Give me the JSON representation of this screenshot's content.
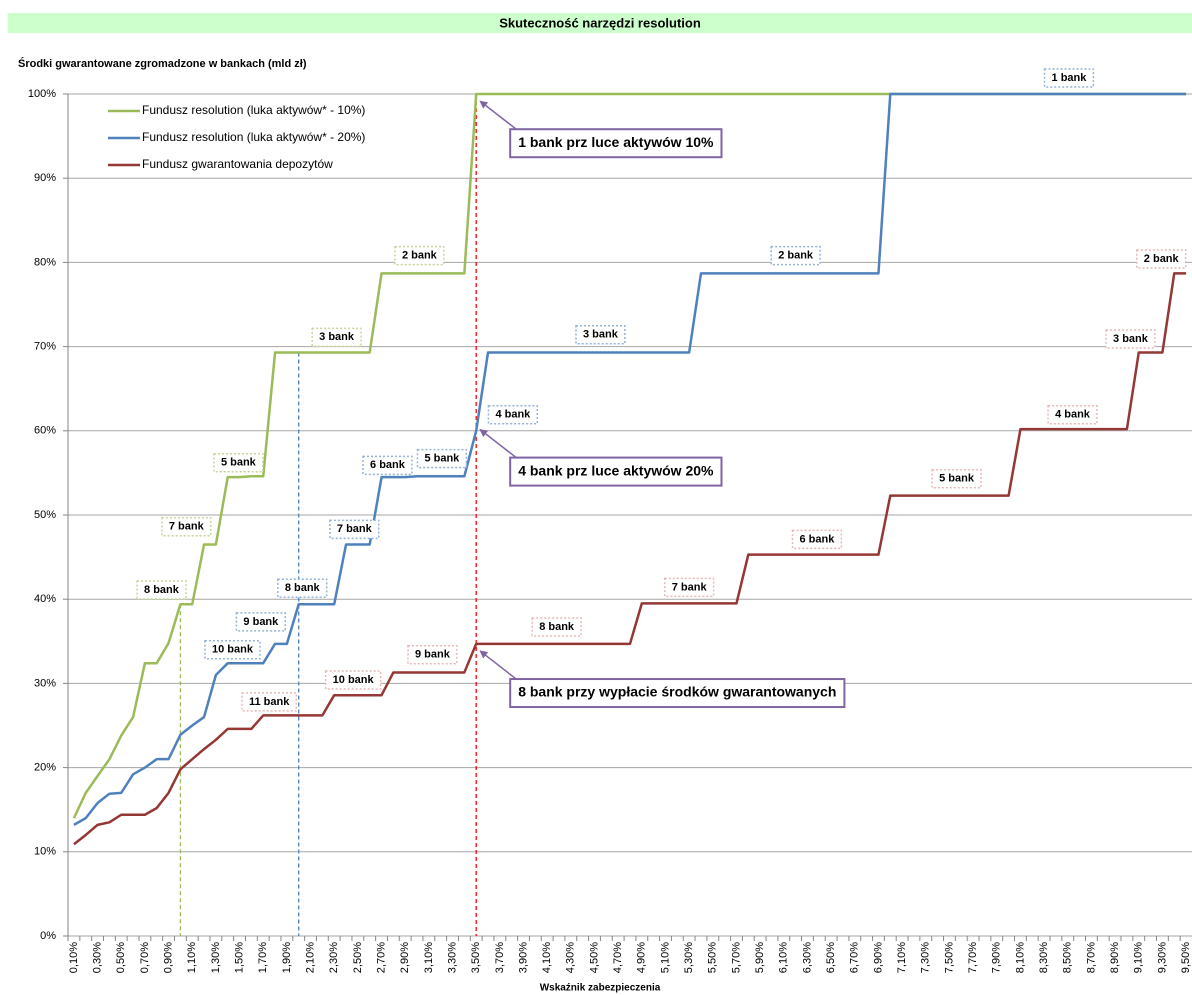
{
  "chart_data": {
    "type": "line",
    "title": "Skuteczność narzędzi resolution",
    "ylabel": "Środki gwarantowane  zgromadzone  w bankach (mld zł)",
    "xlabel": "Wskaźnik zabezpieczenia",
    "categories": [
      "0,10%",
      null,
      "0,30%",
      null,
      "0,50%",
      null,
      "0,70%",
      null,
      "0,90%",
      null,
      "1,10%",
      null,
      "1,30%",
      null,
      "1,50%",
      null,
      "1,70%",
      null,
      "1,90%",
      null,
      "2,10%",
      null,
      "2,30%",
      null,
      "2,50%",
      null,
      "2,70%",
      null,
      "2,90%",
      null,
      "3,10%",
      null,
      "3,30%",
      null,
      "3,50%",
      null,
      "3,70%",
      null,
      "3,90%",
      null,
      "4,10%",
      null,
      "4,30%",
      null,
      "4,50%",
      null,
      "4,70%",
      null,
      "4,90%",
      null,
      "5,10%",
      null,
      "5,30%",
      null,
      "5,50%",
      null,
      "5,70%",
      null,
      "5,90%",
      null,
      "6,10%",
      null,
      "6,30%",
      null,
      "6,50%",
      null,
      "6,70%",
      null,
      "6,90%",
      null,
      "7,10%",
      null,
      "7,30%",
      null,
      "7,50%",
      null,
      "7,70%",
      null,
      "7,90%",
      null,
      "8,10%",
      null,
      "8,30%",
      null,
      "8,50%",
      null,
      "8,70%",
      null,
      "8,90%",
      null,
      "9,10%",
      null,
      "9,30%",
      null,
      "9,50%"
    ],
    "series": [
      {
        "name": "Fundusz resolution (luka aktywów* - 10%)",
        "color": "#9bbb59",
        "values": [
          14,
          17,
          19,
          21,
          23.8,
          26,
          32.4,
          32.4,
          34.8,
          39.4,
          39.4,
          46.5,
          46.5,
          54.5,
          54.5,
          54.6,
          54.6,
          69.3,
          69.3,
          69.3,
          69.3,
          69.3,
          69.3,
          69.3,
          69.3,
          69.3,
          78.7,
          78.7,
          78.7,
          78.7,
          78.7,
          78.7,
          78.7,
          78.7,
          100,
          100,
          100,
          100,
          100,
          100,
          100,
          100,
          100,
          100,
          100,
          100,
          100,
          100,
          100,
          100,
          100,
          100,
          100,
          100,
          100,
          100,
          100,
          100,
          100,
          100,
          100,
          100,
          100,
          100,
          100,
          100,
          100,
          100,
          100,
          100,
          100,
          100,
          100,
          100,
          100,
          100,
          100,
          100,
          100,
          100,
          100,
          100,
          100,
          100,
          100,
          100,
          100,
          100,
          100,
          100,
          100,
          100,
          100,
          100,
          100
        ]
      },
      {
        "name": "Fundusz resolution (luka aktywów* - 20%)",
        "color": "#4f81bd",
        "values": [
          13.2,
          14,
          15.8,
          16.9,
          17,
          19.2,
          20,
          21,
          21,
          23.9,
          25,
          26,
          31,
          32.4,
          32.4,
          32.4,
          32.4,
          34.7,
          34.7,
          39.4,
          39.4,
          39.4,
          39.4,
          46.5,
          46.5,
          46.5,
          54.5,
          54.5,
          54.5,
          54.6,
          54.6,
          54.6,
          54.6,
          54.6,
          60,
          69.3,
          69.3,
          69.3,
          69.3,
          69.3,
          69.3,
          69.3,
          69.3,
          69.3,
          69.3,
          69.3,
          69.3,
          69.3,
          69.3,
          69.3,
          69.3,
          69.3,
          69.3,
          78.7,
          78.7,
          78.7,
          78.7,
          78.7,
          78.7,
          78.7,
          78.7,
          78.7,
          78.7,
          78.7,
          78.7,
          78.7,
          78.7,
          78.7,
          78.7,
          100,
          100,
          100,
          100,
          100,
          100,
          100,
          100,
          100,
          100,
          100,
          100,
          100,
          100,
          100,
          100,
          100,
          100,
          100,
          100,
          100,
          100,
          100,
          100,
          100,
          100
        ]
      },
      {
        "name": "Fundusz gwarantowania depozytów",
        "color": "#953735",
        "values": [
          10.9,
          12,
          13.2,
          13.5,
          14.4,
          14.4,
          14.4,
          15.2,
          17,
          19.8,
          21,
          22.2,
          23.3,
          24.6,
          24.6,
          24.6,
          26.2,
          26.2,
          26.2,
          26.2,
          26.2,
          26.2,
          28.6,
          28.6,
          28.6,
          28.6,
          28.6,
          31.3,
          31.3,
          31.3,
          31.3,
          31.3,
          31.3,
          31.3,
          34.7,
          34.7,
          34.7,
          34.7,
          34.7,
          34.7,
          34.7,
          34.7,
          34.7,
          34.7,
          34.7,
          34.7,
          34.7,
          34.7,
          39.5,
          39.5,
          39.5,
          39.5,
          39.5,
          39.5,
          39.5,
          39.5,
          39.5,
          45.3,
          45.3,
          45.3,
          45.3,
          45.3,
          45.3,
          45.3,
          45.3,
          45.3,
          45.3,
          45.3,
          45.3,
          52.3,
          52.3,
          52.3,
          52.3,
          52.3,
          52.3,
          52.3,
          52.3,
          52.3,
          52.3,
          52.3,
          60.2,
          60.2,
          60.2,
          60.2,
          60.2,
          60.2,
          60.2,
          60.2,
          60.2,
          60.2,
          69.3,
          69.3,
          69.3,
          78.7,
          78.7
        ]
      }
    ],
    "ylim": [
      0,
      100
    ],
    "yticks": [
      {
        "value": 0,
        "label": "0%"
      },
      {
        "value": 10,
        "label": "10%"
      },
      {
        "value": 20,
        "label": "20%"
      },
      {
        "value": 30,
        "label": "30%"
      },
      {
        "value": 40,
        "label": "40%"
      },
      {
        "value": 50,
        "label": "50%"
      },
      {
        "value": 60,
        "label": "60%"
      },
      {
        "value": 70,
        "label": "70%"
      },
      {
        "value": 80,
        "label": "80%"
      },
      {
        "value": 90,
        "label": "90%"
      },
      {
        "value": 100,
        "label": "100%"
      }
    ],
    "grid": true,
    "legend": "upper left",
    "vlines": [
      {
        "x": 1.0,
        "color": "#9bbb59"
      },
      {
        "x": 2.0,
        "color": "#4f81bd"
      },
      {
        "x": 3.5,
        "color": "#ff0000"
      }
    ],
    "annotations": [
      {
        "text": "8 bank",
        "x": 0.84,
        "y": 41.1,
        "color": "#c3d69b"
      },
      {
        "text": "7 bank",
        "x": 1.05,
        "y": 48.6,
        "color": "#c3d69b"
      },
      {
        "text": "5 bank",
        "x": 1.49,
        "y": 56.2,
        "color": "#c3d69b"
      },
      {
        "text": "3 bank",
        "x": 2.32,
        "y": 71.1,
        "color": "#c3d69b"
      },
      {
        "text": "2 bank",
        "x": 3.02,
        "y": 80.8,
        "color": "#c3d69b"
      },
      {
        "text": "10 bank",
        "x": 1.44,
        "y": 34.0,
        "color": "#95b3d7"
      },
      {
        "text": "9 bank",
        "x": 1.68,
        "y": 37.3,
        "color": "#95b3d7"
      },
      {
        "text": "8 bank",
        "x": 2.03,
        "y": 41.3,
        "color": "#95b3d7"
      },
      {
        "text": "7 bank",
        "x": 2.47,
        "y": 48.3,
        "color": "#95b3d7"
      },
      {
        "text": "6 bank",
        "x": 2.75,
        "y": 55.9,
        "color": "#95b3d7"
      },
      {
        "text": "5 bank",
        "x": 3.21,
        "y": 56.7,
        "color": "#95b3d7"
      },
      {
        "text": "4 bank",
        "x": 3.81,
        "y": 61.9,
        "color": "#95b3d7"
      },
      {
        "text": "3 bank",
        "x": 4.55,
        "y": 71.4,
        "color": "#95b3d7"
      },
      {
        "text": "2 bank",
        "x": 6.2,
        "y": 80.8,
        "color": "#95b3d7"
      },
      {
        "text": "1 bank",
        "x": 8.51,
        "y": 101.9,
        "color": "#95b3d7"
      },
      {
        "text": "11 bank",
        "x": 1.75,
        "y": 27.8,
        "color": "#e6b9b8"
      },
      {
        "text": "10 bank",
        "x": 2.46,
        "y": 30.4,
        "color": "#e6b9b8"
      },
      {
        "text": "9 bank",
        "x": 3.13,
        "y": 33.4,
        "color": "#e6b9b8"
      },
      {
        "text": "8 bank",
        "x": 4.18,
        "y": 36.7,
        "color": "#e6b9b8"
      },
      {
        "text": "7 bank",
        "x": 5.3,
        "y": 41.4,
        "color": "#e6b9b8"
      },
      {
        "text": "6 bank",
        "x": 6.38,
        "y": 47.1,
        "color": "#e6b9b8"
      },
      {
        "text": "5 bank",
        "x": 7.56,
        "y": 54.3,
        "color": "#e6b9b8"
      },
      {
        "text": "4 bank",
        "x": 8.54,
        "y": 61.9,
        "color": "#e6b9b8"
      },
      {
        "text": "3 bank",
        "x": 9.03,
        "y": 70.9,
        "color": "#e6b9b8"
      },
      {
        "text": "2 bank",
        "x": 9.29,
        "y": 80.4,
        "color": "#e6b9b8"
      }
    ],
    "callouts": [
      {
        "text": "1 bank prz luce aktywów 10%",
        "x": 3.5,
        "y": 99.5
      },
      {
        "text": "4 bank prz luce aktywów 20%",
        "x": 3.5,
        "y": 60.5
      },
      {
        "text": "8 bank przy wypłacie środków gwarantowanych",
        "x": 3.5,
        "y": 34.2
      }
    ]
  }
}
